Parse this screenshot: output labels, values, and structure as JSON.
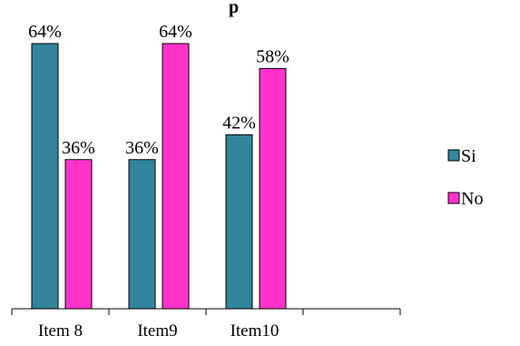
{
  "chart_data": {
    "type": "bar",
    "title": "",
    "title_fragment": "p",
    "categories": [
      "Item 8",
      "Item9",
      "Item10"
    ],
    "series": [
      {
        "name": "Si",
        "values": [
          64,
          36,
          42
        ],
        "labels": [
          "64%",
          "36%",
          "42%"
        ],
        "color": "#31859C"
      },
      {
        "name": "No",
        "values": [
          36,
          64,
          58
        ],
        "labels": [
          "36%",
          "64%",
          "58%"
        ],
        "color": "#FF33CC"
      }
    ],
    "ylim": [
      0,
      70
    ],
    "grid": false,
    "legend_position": "right",
    "xlabel": "",
    "ylabel": ""
  }
}
